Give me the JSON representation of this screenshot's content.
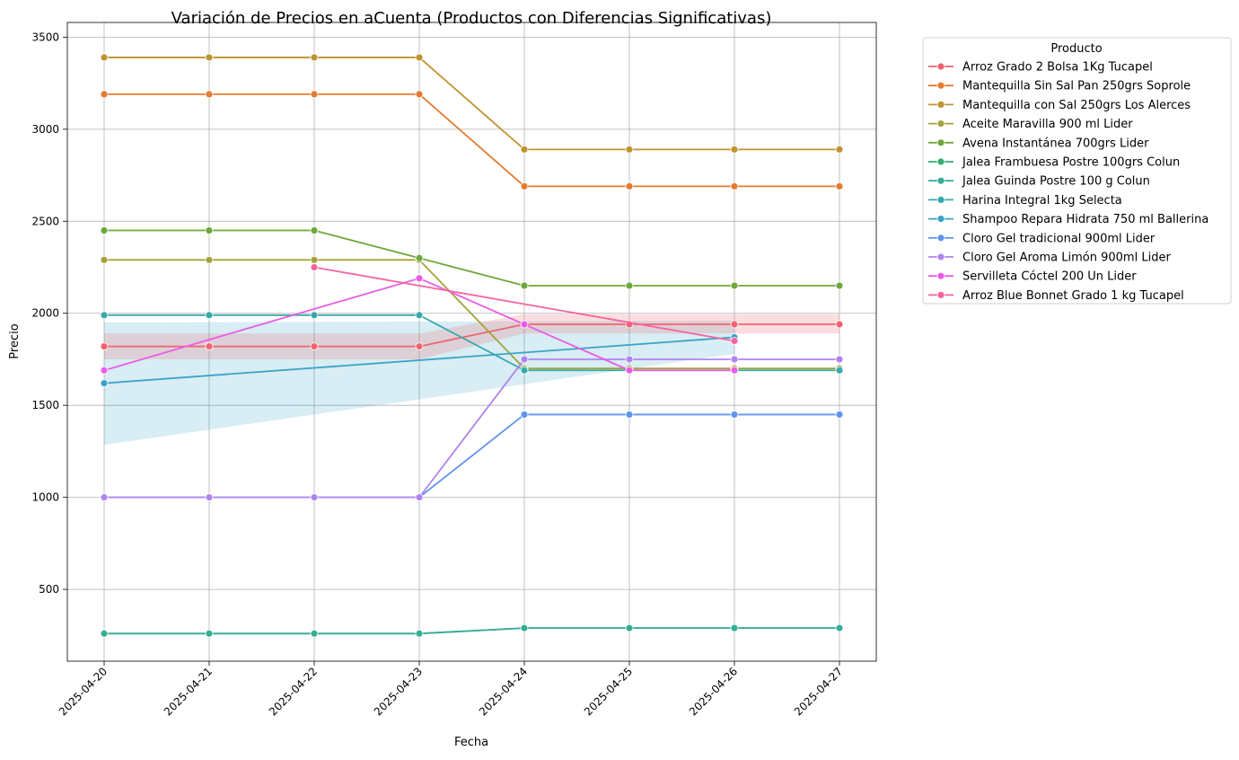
{
  "chart_data": {
    "type": "line",
    "title": "Variación de Precios en aCuenta (Productos con Diferencias Significativas)",
    "xlabel": "Fecha",
    "ylabel": "Precio",
    "x": [
      "2025-04-20",
      "2025-04-21",
      "2025-04-22",
      "2025-04-23",
      "2025-04-24",
      "2025-04-25",
      "2025-04-26",
      "2025-04-27"
    ],
    "y_ticks": [
      500,
      1000,
      1500,
      2000,
      2500,
      3000,
      3500
    ],
    "ylim": [
      110,
      3580
    ],
    "grid": true,
    "legend": {
      "title": "Producto",
      "placement": "outside-top-right"
    },
    "series": [
      {
        "name": "Arroz Grado 2 Bolsa 1Kg Tucapel",
        "color": "#f0636e",
        "values": [
          1820,
          1820,
          1820,
          1820,
          1940,
          1940,
          1940,
          1940
        ]
      },
      {
        "name": "Mantequilla Sin Sal Pan 250grs Soprole",
        "color": "#e47b31",
        "values": [
          3190,
          3190,
          3190,
          3190,
          2690,
          2690,
          2690,
          2690
        ]
      },
      {
        "name": "Mantequilla con Sal 250grs Los Alerces",
        "color": "#bf9330",
        "values": [
          3390,
          3390,
          3390,
          3390,
          2890,
          2890,
          2890,
          2890
        ]
      },
      {
        "name": "Aceite Maravilla 900 ml Lider",
        "color": "#a4a33a",
        "values": [
          2290,
          2290,
          2290,
          2290,
          1700,
          1700,
          1700,
          1700
        ]
      },
      {
        "name": "Avena Instantánea 700grs Lider",
        "color": "#6ea839",
        "values": [
          2450,
          2450,
          2450,
          2300,
          2150,
          2150,
          2150,
          2150
        ]
      },
      {
        "name": "Jalea Frambuesa Postre 100grs Colun",
        "color": "#33ad6e",
        "values": [
          260,
          260,
          260,
          260,
          290,
          290,
          290,
          290
        ]
      },
      {
        "name": "Jalea Guinda Postre 100 g Colun",
        "color": "#36ad95",
        "values": [
          260,
          260,
          260,
          260,
          290,
          290,
          290,
          290
        ]
      },
      {
        "name": "Harina Integral 1kg Selecta",
        "color": "#37aaaa",
        "values": [
          1990,
          1990,
          1990,
          1990,
          1690,
          1690,
          1690,
          1690
        ]
      },
      {
        "name": "Shampoo Repara Hidrata 750 ml Ballerina",
        "color": "#3aa3c8",
        "values": [
          1620,
          null,
          null,
          null,
          null,
          null,
          1870,
          null
        ],
        "band": {
          "x_start": "2025-04-20",
          "x_end": "2025-04-26",
          "lower_start": 1285,
          "lower_end": 1780,
          "upper_start": 1950,
          "upper_end": 1960
        }
      },
      {
        "name": "Cloro Gel tradicional 900ml Lider",
        "color": "#6095ed",
        "values": [
          1000,
          1000,
          1000,
          1000,
          1450,
          1450,
          1450,
          1450
        ]
      },
      {
        "name": "Cloro Gel Aroma Limón 900ml Lider",
        "color": "#b084ef",
        "values": [
          1000,
          1000,
          1000,
          1000,
          1750,
          1750,
          1750,
          1750
        ]
      },
      {
        "name": "Servilleta Cóctel 200 Un Lider",
        "color": "#ea5ce6",
        "values": [
          1690,
          null,
          null,
          2190,
          1940,
          1690,
          1690,
          null
        ]
      },
      {
        "name": "Arroz Blue Bonnet Grado 1 kg Tucapel",
        "color": "#f5649f",
        "values": [
          null,
          null,
          2250,
          null,
          null,
          null,
          1850,
          null
        ]
      }
    ],
    "bands": [
      {
        "series": "Arroz Grado 2 Bolsa 1Kg Tucapel",
        "color": "#f0636e",
        "lower": [
          1750,
          1750,
          1750,
          1750,
          1890,
          1890,
          1890,
          1890
        ],
        "upper": [
          1890,
          1890,
          1890,
          1890,
          1995,
          1995,
          1995,
          1995
        ]
      }
    ]
  }
}
